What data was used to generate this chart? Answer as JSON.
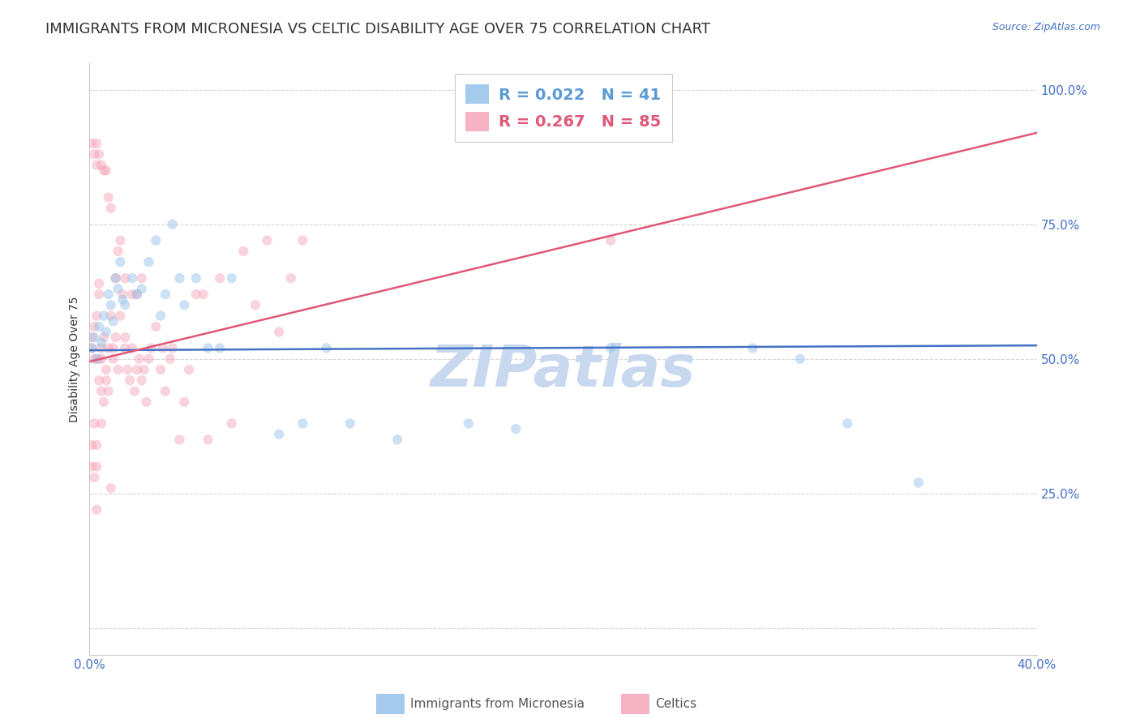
{
  "title": "IMMIGRANTS FROM MICRONESIA VS CELTIC DISABILITY AGE OVER 75 CORRELATION CHART",
  "source": "Source: ZipAtlas.com",
  "ylabel": "Disability Age Over 75",
  "xlim": [
    0.0,
    0.4
  ],
  "ylim": [
    -0.05,
    1.05
  ],
  "xtick_positions": [
    0.0,
    0.1,
    0.2,
    0.3,
    0.4
  ],
  "xticklabels": [
    "0.0%",
    "",
    "",
    "",
    "40.0%"
  ],
  "ytick_positions": [
    0.0,
    0.25,
    0.5,
    0.75,
    1.0
  ],
  "yticklabels_right": [
    "",
    "25.0%",
    "50.0%",
    "75.0%",
    "100.0%"
  ],
  "watermark": "ZIPatlas",
  "legend_label_blue": "R = 0.022   N = 41",
  "legend_label_pink": "R = 0.267   N = 85",
  "blue_scatter_x": [
    0.001,
    0.002,
    0.003,
    0.004,
    0.005,
    0.006,
    0.007,
    0.008,
    0.009,
    0.01,
    0.011,
    0.012,
    0.013,
    0.014,
    0.015,
    0.018,
    0.02,
    0.022,
    0.025,
    0.028,
    0.03,
    0.032,
    0.035,
    0.038,
    0.04,
    0.045,
    0.05,
    0.055,
    0.06,
    0.08,
    0.09,
    0.1,
    0.11,
    0.13,
    0.16,
    0.18,
    0.22,
    0.28,
    0.3,
    0.35,
    0.32
  ],
  "blue_scatter_y": [
    0.52,
    0.54,
    0.5,
    0.56,
    0.53,
    0.58,
    0.55,
    0.62,
    0.6,
    0.57,
    0.65,
    0.63,
    0.68,
    0.61,
    0.6,
    0.65,
    0.62,
    0.63,
    0.68,
    0.72,
    0.58,
    0.62,
    0.75,
    0.65,
    0.6,
    0.65,
    0.52,
    0.52,
    0.65,
    0.36,
    0.38,
    0.52,
    0.38,
    0.35,
    0.38,
    0.37,
    0.52,
    0.52,
    0.5,
    0.27,
    0.38
  ],
  "pink_scatter_x": [
    0.001,
    0.001,
    0.001,
    0.002,
    0.002,
    0.002,
    0.003,
    0.003,
    0.003,
    0.004,
    0.004,
    0.004,
    0.005,
    0.005,
    0.005,
    0.006,
    0.006,
    0.007,
    0.007,
    0.008,
    0.008,
    0.009,
    0.009,
    0.01,
    0.01,
    0.011,
    0.011,
    0.012,
    0.012,
    0.013,
    0.013,
    0.014,
    0.015,
    0.015,
    0.016,
    0.017,
    0.018,
    0.019,
    0.02,
    0.021,
    0.022,
    0.023,
    0.024,
    0.025,
    0.026,
    0.028,
    0.03,
    0.031,
    0.032,
    0.034,
    0.035,
    0.038,
    0.04,
    0.042,
    0.045,
    0.048,
    0.05,
    0.055,
    0.06,
    0.065,
    0.07,
    0.075,
    0.08,
    0.085,
    0.09,
    0.001,
    0.001,
    0.002,
    0.002,
    0.003,
    0.003,
    0.003,
    0.004,
    0.004,
    0.005,
    0.005,
    0.006,
    0.007,
    0.008,
    0.009,
    0.015,
    0.018,
    0.02,
    0.022,
    0.22
  ],
  "pink_scatter_y": [
    0.52,
    0.54,
    0.9,
    0.5,
    0.56,
    0.88,
    0.58,
    0.86,
    0.9,
    0.62,
    0.64,
    0.88,
    0.5,
    0.52,
    0.86,
    0.54,
    0.85,
    0.48,
    0.85,
    0.52,
    0.8,
    0.58,
    0.78,
    0.5,
    0.52,
    0.54,
    0.65,
    0.48,
    0.7,
    0.58,
    0.72,
    0.62,
    0.52,
    0.54,
    0.48,
    0.46,
    0.52,
    0.44,
    0.48,
    0.5,
    0.46,
    0.48,
    0.42,
    0.5,
    0.52,
    0.56,
    0.48,
    0.52,
    0.44,
    0.5,
    0.52,
    0.35,
    0.42,
    0.48,
    0.62,
    0.62,
    0.35,
    0.65,
    0.38,
    0.7,
    0.6,
    0.72,
    0.55,
    0.65,
    0.72,
    0.34,
    0.3,
    0.38,
    0.28,
    0.22,
    0.34,
    0.3,
    0.5,
    0.46,
    0.44,
    0.38,
    0.42,
    0.46,
    0.44,
    0.26,
    0.65,
    0.62,
    0.62,
    0.65,
    0.72
  ],
  "blue_line_x": [
    0.0,
    0.4
  ],
  "blue_line_y": [
    0.516,
    0.525
  ],
  "pink_line_x": [
    0.0,
    0.4
  ],
  "pink_line_y": [
    0.495,
    0.92
  ],
  "blue_color": "#8fbfe8",
  "pink_color": "#f4a0b5",
  "blue_line_color": "#4472c4",
  "pink_line_color": "#e05878",
  "background_color": "#ffffff",
  "grid_color": "#cccccc",
  "title_fontsize": 13,
  "axis_label_fontsize": 10,
  "tick_fontsize": 11,
  "watermark_fontsize": 52,
  "watermark_color": "#c8d8ef",
  "marker_size": 80,
  "marker_alpha": 0.45,
  "legend_text_blue": "#5b9bd5",
  "legend_text_pink": "#e05878"
}
